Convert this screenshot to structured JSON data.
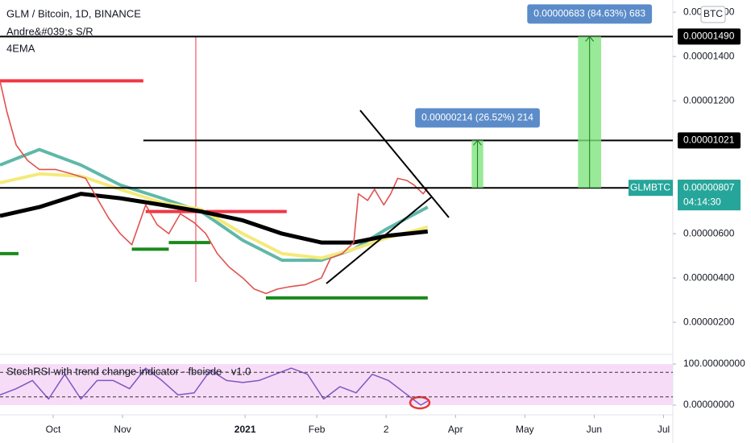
{
  "chart_data": {
    "type": "line",
    "title": "GLM / Bitcoin, 1D, BINANCE",
    "indicators": [
      "Andre&#039;s S/R",
      "4EMA"
    ],
    "currency": "BTC",
    "xlim": [
      0,
      291
    ],
    "xticks": [
      {
        "value": 23,
        "label": "Oct"
      },
      {
        "value": 53,
        "label": "Nov"
      },
      {
        "value": 106,
        "label": "2021"
      },
      {
        "value": 137,
        "label": "Feb"
      },
      {
        "value": 167,
        "label": "2"
      },
      {
        "value": 197,
        "label": "Apr"
      },
      {
        "value": 227,
        "label": "May"
      },
      {
        "value": 257,
        "label": "Jun"
      },
      {
        "value": 287,
        "label": "Jul"
      }
    ],
    "ylim": [
      5.5e-07,
      1.655e-05
    ],
    "yticks": [
      {
        "value": 2e-06,
        "label": "0.00000200"
      },
      {
        "value": 4e-06,
        "label": "0.00000400"
      },
      {
        "value": 6e-06,
        "label": "0.00000600"
      },
      {
        "value": 1.2e-05,
        "label": "0.00001200"
      },
      {
        "value": 1.4e-05,
        "label": "0.00001400"
      },
      {
        "value": 1.6e-05,
        "label": "0.00001600"
      }
    ],
    "series": [
      {
        "color": "#e0524f",
        "width": 1.6,
        "x": [
          0,
          3,
          7,
          12,
          17,
          24,
          31,
          37,
          42,
          47,
          52,
          57,
          63,
          68,
          73,
          78,
          84,
          89,
          94,
          99,
          105,
          110,
          115,
          120,
          125,
          132,
          139,
          143,
          148,
          153,
          155,
          159,
          162,
          166,
          169,
          172,
          176,
          179,
          183,
          185
        ],
        "values": [
          1.29e-05,
          1.15e-05,
          1e-05,
          9.3e-06,
          8.9e-06,
          8.9e-06,
          8.7e-06,
          8.5e-06,
          7.6e-06,
          6.7e-06,
          6e-06,
          5.5e-06,
          7.3e-06,
          6.4e-06,
          6e-06,
          6.9e-06,
          6.5e-06,
          6e-06,
          5.1e-06,
          4.5e-06,
          4e-06,
          3.5e-06,
          3.3e-06,
          3.5e-06,
          3.6e-06,
          3.7e-06,
          4e-06,
          4.9e-06,
          5.1e-06,
          5.6e-06,
          7.8e-06,
          7.5e-06,
          8e-06,
          7.3e-06,
          7.8e-06,
          8.5e-06,
          8.4e-06,
          8.2e-06,
          7.8e-06,
          8.07e-06
        ]
      },
      {
        "color": "#000000",
        "width": 5,
        "x": [
          0,
          17,
          35,
          52,
          70,
          87,
          105,
          122,
          139,
          153,
          167,
          185
        ],
        "values": [
          6.8e-06,
          7.2e-06,
          7.8e-06,
          7.6e-06,
          7.3e-06,
          7e-06,
          6.6e-06,
          6e-06,
          5.6e-06,
          5.6e-06,
          5.9e-06,
          6.1e-06
        ]
      },
      {
        "color": "#f5e97a",
        "width": 4,
        "x": [
          0,
          17,
          35,
          52,
          70,
          87,
          105,
          122,
          139,
          153,
          167,
          185
        ],
        "values": [
          8.3e-06,
          8.7e-06,
          8.6e-06,
          8e-06,
          7.4e-06,
          7.1e-06,
          6e-06,
          5.1e-06,
          4.9e-06,
          5.3e-06,
          5.8e-06,
          6.3e-06
        ]
      },
      {
        "color": "#5fb8a8",
        "width": 4,
        "x": [
          0,
          17,
          35,
          52,
          70,
          87,
          105,
          122,
          139,
          153,
          167,
          185
        ],
        "values": [
          9.1e-06,
          9.8e-06,
          9.1e-06,
          8.2e-06,
          7.6e-06,
          7e-06,
          5.7e-06,
          4.8e-06,
          4.8e-06,
          5.3e-06,
          6.2e-06,
          7.2e-06
        ]
      }
    ],
    "levels": [
      {
        "value": 1.49e-05,
        "label": "0.00001490",
        "x": [
          0,
          291
        ]
      },
      {
        "value": 1.021e-05,
        "label": "0.00001021",
        "x": [
          62,
          291
        ]
      },
      {
        "value": 8.07e-06,
        "label": "0.00000807",
        "x": [
          0,
          291
        ]
      }
    ],
    "sr_lines": [
      {
        "value": 1.29e-05,
        "x": [
          0,
          62
        ],
        "color": "#f23645"
      },
      {
        "value": 7e-06,
        "x": [
          63,
          124
        ],
        "color": "#f23645"
      },
      {
        "value": 3.1e-06,
        "x": [
          115,
          185
        ],
        "color": "#1b8a1b"
      },
      {
        "value": 5.3e-06,
        "x": [
          57,
          73
        ],
        "color": "#1b8a1b"
      },
      {
        "value": 5.1e-06,
        "x": [
          0,
          8
        ],
        "color": "#1b8a1b"
      },
      {
        "value": 5.6e-06,
        "x": [
          73,
          91
        ],
        "color": "#1b8a1b"
      }
    ],
    "measures": [
      {
        "text": "0.00000683 (84.63%) 683",
        "from": 8.07e-06,
        "to": 1.49e-05,
        "x": [
          250,
          260
        ]
      },
      {
        "text": "0.00000214 (26.52%) 214",
        "from": 8.07e-06,
        "to": 1.021e-05,
        "x": [
          204,
          209
        ]
      }
    ],
    "last_price": {
      "symbol": "GLMBTC",
      "value": 8.07e-06,
      "label": "0.00000807",
      "countdown": "04:14:30",
      "color": "#26a69a"
    },
    "oscillator": {
      "title": "StochRSI with trend change indicator - fboisde - v1.0",
      "color": "#7e57c2",
      "ylim": [
        -23.5,
        123.5
      ],
      "yticks": [
        {
          "value": 100,
          "label": "100.00000000"
        },
        {
          "value": 0,
          "label": "0.00000000"
        }
      ],
      "bands": [
        80,
        20
      ],
      "x": [
        0,
        7,
        14,
        21,
        28,
        35,
        42,
        49,
        56,
        63,
        70,
        77,
        84,
        91,
        98,
        105,
        112,
        119,
        126,
        133,
        140,
        147,
        154,
        161,
        168,
        175,
        182,
        185
      ],
      "values": [
        25,
        40,
        60,
        15,
        75,
        15,
        60,
        60,
        40,
        90,
        60,
        25,
        30,
        85,
        60,
        55,
        60,
        75,
        90,
        75,
        15,
        45,
        30,
        75,
        60,
        30,
        0,
        10
      ]
    }
  }
}
